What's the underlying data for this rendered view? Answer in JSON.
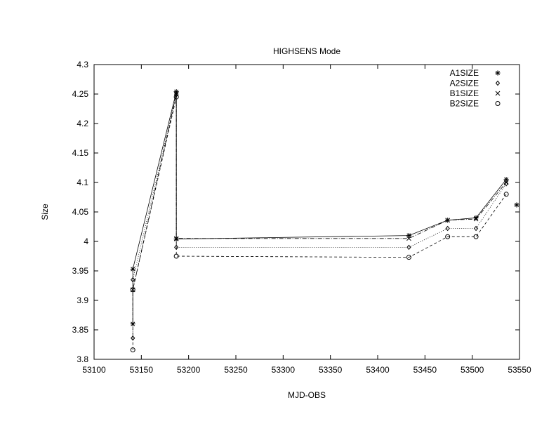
{
  "chart_data": {
    "type": "line",
    "title": "HIGHSENS Mode",
    "xlabel": "MJD-OBS",
    "ylabel": "Size",
    "xlim": [
      53100,
      53550
    ],
    "ylim": [
      3.8,
      4.3
    ],
    "xticks": [
      53100,
      53150,
      53200,
      53250,
      53300,
      53350,
      53400,
      53450,
      53500,
      53550
    ],
    "xtick_labels": [
      "53100",
      "53150",
      "53200",
      "53250",
      "53300",
      "53350",
      "53400",
      "53450",
      "53500",
      "53550"
    ],
    "yticks": [
      3.8,
      3.85,
      3.9,
      3.95,
      4.0,
      4.05,
      4.1,
      4.15,
      4.2,
      4.25,
      4.3
    ],
    "ytick_labels": [
      "3.8",
      "3.85",
      "3.9",
      "3.95",
      "4",
      "4.05",
      "4.1",
      "4.15",
      "4.2",
      "4.25",
      "4.3"
    ],
    "grid": false,
    "legend_position": "top-right",
    "series": [
      {
        "name": "A1SIZE",
        "marker": "asterisk",
        "dash": "solid",
        "points": [
          [
            53141,
            3.86
          ],
          [
            53141,
            3.953
          ],
          [
            53187,
            4.254
          ],
          [
            53187,
            4.004
          ],
          [
            53433,
            4.01
          ],
          [
            53474,
            4.036
          ],
          [
            53504,
            4.04
          ],
          [
            53536,
            4.105
          ]
        ]
      },
      {
        "name": "A2SIZE",
        "marker": "diamond",
        "dash": "dotted",
        "points": [
          [
            53141,
            3.836
          ],
          [
            53141,
            3.935
          ],
          [
            53187,
            4.249
          ],
          [
            53187,
            3.99
          ],
          [
            53433,
            3.99
          ],
          [
            53474,
            4.022
          ],
          [
            53504,
            4.022
          ],
          [
            53536,
            4.098
          ]
        ]
      },
      {
        "name": "B1SIZE",
        "marker": "cross",
        "dash": "dashdot",
        "points": [
          [
            53141,
            3.918
          ],
          [
            53187,
            4.25
          ],
          [
            53187,
            4.005
          ],
          [
            53433,
            4.005
          ],
          [
            53474,
            4.036
          ],
          [
            53504,
            4.038
          ],
          [
            53536,
            4.1
          ]
        ]
      },
      {
        "name": "B2SIZE",
        "marker": "circle",
        "dash": "dashed",
        "points": [
          [
            53141,
            3.816
          ],
          [
            53141,
            3.918
          ],
          [
            53187,
            4.245
          ],
          [
            53187,
            3.975
          ],
          [
            53433,
            3.973
          ],
          [
            53474,
            4.008
          ],
          [
            53504,
            4.008
          ],
          [
            53536,
            4.08
          ]
        ]
      }
    ]
  }
}
